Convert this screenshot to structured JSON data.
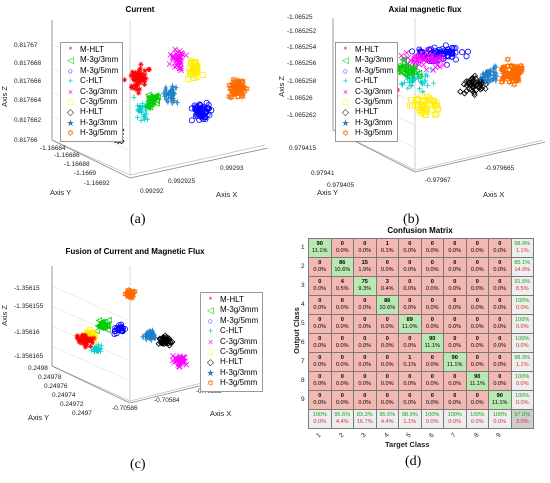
{
  "captions": [
    "(a)",
    "(b)",
    "(c)",
    "(d)"
  ],
  "legend_items": [
    {
      "name": "M-HLT",
      "marker": "*",
      "color": "#ff0000"
    },
    {
      "name": "M-3g/3mm",
      "marker": "◁",
      "color": "#00cc00"
    },
    {
      "name": "M-3g/5mm",
      "marker": "○",
      "color": "#0000ff"
    },
    {
      "name": "C-HLT",
      "marker": "+",
      "color": "#00cccc"
    },
    {
      "name": "C-3g/3mm",
      "marker": "×",
      "color": "#ff00ff"
    },
    {
      "name": "C-3g/5mm",
      "marker": "□",
      "color": "#ffee00"
    },
    {
      "name": "H-HLT",
      "marker": "◇",
      "color": "#000000"
    },
    {
      "name": "H-3g/3mm",
      "marker": "★",
      "color": "#1e7fc8"
    },
    {
      "name": "H-3g/5mm",
      "marker": "✡",
      "color": "#ff6a00"
    }
  ],
  "panel_a": {
    "title": "Current",
    "zlabel": "Axis Z",
    "ylabel": "Axis Y",
    "xlabel": "Axis X",
    "zticks": [
      "0.81767",
      "0.817668",
      "0.817666",
      "0.817664",
      "0.817662",
      "0.81766"
    ],
    "yticks": [
      "-1.16684",
      "-1.16686",
      "-1.16688",
      "-1.1669",
      "-1.16692"
    ],
    "xticks": [
      "0.99292",
      "0.992925",
      "0.99293"
    ]
  },
  "panel_b": {
    "title": "Axial magnetic flux",
    "zlabel": "Axis Z",
    "ylabel": "Axis Y",
    "xlabel": "Axis X",
    "zticks": [
      "-1.06525",
      "-1.065252",
      "-1.065254",
      "-1.065256",
      "-1.065258",
      "-1.06526",
      "-1.065262"
    ],
    "yticks": [
      "0.979415",
      "0.97941",
      "0.979405"
    ],
    "xticks": [
      "-0.97967",
      "-0.979665"
    ]
  },
  "panel_c": {
    "title": "Fusion of Current and Magnetic Flux",
    "zlabel": "Axis Z",
    "ylabel": "Axis Y",
    "xlabel": "Axis X",
    "zticks": [
      "-1.35615",
      "-1.356155",
      "-1.35616",
      "-1.356165"
    ],
    "yticks": [
      "0.2498",
      "0.24978",
      "0.24976",
      "0.24974",
      "0.24972",
      "0.2497"
    ],
    "xticks": [
      "-0.70586",
      "-0.70584",
      "-0.70582",
      "-0.7058"
    ]
  },
  "confusion": {
    "title": "Confusion Matrix",
    "ylabel": "Output Class",
    "xlabel": "Target Class",
    "row_labels": [
      "1",
      "2",
      "3",
      "4",
      "5",
      "6",
      "7",
      "8",
      "9"
    ],
    "col_labels": [
      "1",
      "2",
      "3",
      "4",
      "5",
      "6",
      "7",
      "8",
      "9"
    ],
    "counts": [
      [
        90,
        0,
        0,
        1,
        0,
        0,
        0,
        0,
        0
      ],
      [
        0,
        86,
        15,
        0,
        0,
        0,
        0,
        0,
        0
      ],
      [
        0,
        4,
        75,
        3,
        0,
        0,
        0,
        0,
        0
      ],
      [
        0,
        0,
        0,
        86,
        0,
        0,
        0,
        0,
        0
      ],
      [
        0,
        0,
        0,
        0,
        89,
        0,
        0,
        0,
        0
      ],
      [
        0,
        0,
        0,
        0,
        0,
        90,
        0,
        0,
        0
      ],
      [
        0,
        0,
        0,
        0,
        1,
        0,
        90,
        0,
        0
      ],
      [
        0,
        0,
        0,
        0,
        0,
        0,
        0,
        90,
        0
      ],
      [
        0,
        0,
        0,
        0,
        0,
        0,
        0,
        0,
        90
      ]
    ],
    "percents": [
      [
        "11.1%",
        "0.0%",
        "0.0%",
        "0.1%",
        "0.0%",
        "0.0%",
        "0.0%",
        "0.0%",
        "0.0%"
      ],
      [
        "0.0%",
        "10.6%",
        "1.9%",
        "0.0%",
        "0.0%",
        "0.0%",
        "0.0%",
        "0.0%",
        "0.0%"
      ],
      [
        "0.0%",
        "0.5%",
        "9.3%",
        "0.4%",
        "0.0%",
        "0.0%",
        "0.0%",
        "0.0%",
        "0.0%"
      ],
      [
        "0.0%",
        "0.0%",
        "0.0%",
        "10.6%",
        "0.0%",
        "0.0%",
        "0.0%",
        "0.0%",
        "0.0%"
      ],
      [
        "0.0%",
        "0.0%",
        "0.0%",
        "0.0%",
        "11.0%",
        "0.0%",
        "0.0%",
        "0.0%",
        "0.0%"
      ],
      [
        "0.0%",
        "0.0%",
        "0.0%",
        "0.0%",
        "0.0%",
        "11.1%",
        "0.0%",
        "0.0%",
        "0.0%"
      ],
      [
        "0.0%",
        "0.0%",
        "0.0%",
        "0.0%",
        "0.1%",
        "0.0%",
        "11.1%",
        "0.0%",
        "0.0%"
      ],
      [
        "0.0%",
        "0.0%",
        "0.0%",
        "0.0%",
        "0.0%",
        "0.0%",
        "0.0%",
        "11.1%",
        "0.0%"
      ],
      [
        "0.0%",
        "0.0%",
        "0.0%",
        "0.0%",
        "0.0%",
        "0.0%",
        "0.0%",
        "0.0%",
        "11.1%"
      ]
    ],
    "row_summary": [
      [
        "98.9%",
        "1.1%"
      ],
      [
        "85.1%",
        "14.9%"
      ],
      [
        "91.5%",
        "8.5%"
      ],
      [
        "100%",
        "0.0%"
      ],
      [
        "100%",
        "0.0%"
      ],
      [
        "100%",
        "0.0%"
      ],
      [
        "98.9%",
        "1.1%"
      ],
      [
        "100%",
        "0.0%"
      ],
      [
        "100%",
        "0.0%"
      ]
    ],
    "col_summary": [
      [
        "100%",
        "0.0%"
      ],
      [
        "95.6%",
        "4.4%"
      ],
      [
        "83.3%",
        "16.7%"
      ],
      [
        "95.6%",
        "4.4%"
      ],
      [
        "98.9%",
        "1.1%"
      ],
      [
        "100%",
        "0.0%"
      ],
      [
        "100%",
        "0.0%"
      ],
      [
        "100%",
        "0.0%"
      ],
      [
        "100%",
        "0.0%"
      ]
    ],
    "overall": [
      "97.0%",
      "3.0%"
    ]
  },
  "chart_data": [
    {
      "type": "scatter",
      "title": "Current",
      "xlabel": "Axis X",
      "ylabel": "Axis Y",
      "zlabel": "Axis Z",
      "series": [
        {
          "name": "M-HLT"
        },
        {
          "name": "M-3g/3mm"
        },
        {
          "name": "M-3g/5mm"
        },
        {
          "name": "C-HLT"
        },
        {
          "name": "C-3g/3mm"
        },
        {
          "name": "C-3g/5mm"
        },
        {
          "name": "H-HLT"
        },
        {
          "name": "H-3g/3mm"
        },
        {
          "name": "H-3g/5mm"
        }
      ]
    },
    {
      "type": "scatter",
      "title": "Axial magnetic flux",
      "xlabel": "Axis X",
      "ylabel": "Axis Y",
      "zlabel": "Axis Z"
    },
    {
      "type": "scatter",
      "title": "Fusion of Current and Magnetic Flux",
      "xlabel": "Axis X",
      "ylabel": "Axis Y",
      "zlabel": "Axis Z"
    },
    {
      "type": "heatmap",
      "title": "Confusion Matrix",
      "xlabel": "Target Class",
      "ylabel": "Output Class"
    }
  ]
}
